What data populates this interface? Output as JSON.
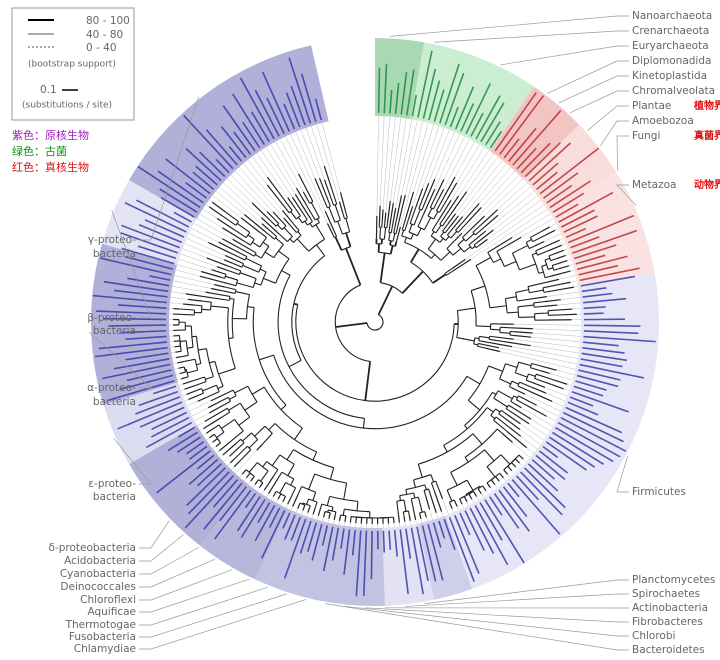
{
  "legend": {
    "lines": [
      "80 - 100",
      "40 - 80",
      "0 - 40"
    ],
    "note": "(bootstrap support)",
    "scale": "0.1",
    "scale_note": "(substitutions / site)"
  },
  "annotations": [
    {
      "text": "紫色：原核生物",
      "color": "#a020c0"
    },
    {
      "text": "绿色：古菌",
      "color": "#109010"
    },
    {
      "text": "红色：真核生物",
      "color": "#e01010"
    }
  ],
  "right_labels": [
    {
      "label": "Nanoarchaeota"
    },
    {
      "label": "Crenarchaeota"
    },
    {
      "label": "Euryarchaeota"
    },
    {
      "label": "Diplomonadida"
    },
    {
      "label": "Kinetoplastida"
    },
    {
      "label": "Chromalveolata"
    },
    {
      "label": "Plantae",
      "note": "植物界"
    },
    {
      "label": "Amoebozoa"
    },
    {
      "label": "Fungi",
      "note": "真菌界"
    },
    {
      "label": "Metazoa",
      "note": "动物界"
    },
    {
      "label": "Firmicutes"
    },
    {
      "label": "Planctomycetes"
    },
    {
      "label": "Spirochaetes"
    },
    {
      "label": "Actinobacteria"
    },
    {
      "label": "Fibrobacteres"
    },
    {
      "label": "Chlorobi"
    },
    {
      "label": "Bacteroidetes"
    }
  ],
  "left_labels": [
    {
      "label": "γ-proteo-\nbacteria"
    },
    {
      "label": "β-proteo-\nbacteria"
    },
    {
      "label": "α-proteo-\nbacteria"
    },
    {
      "label": "ε-proteo-\nbacteria"
    },
    {
      "label": "δ-proteobacteria"
    },
    {
      "label": "Acidobacteria"
    },
    {
      "label": "Cyanobacteria"
    },
    {
      "label": "Deinococcales"
    },
    {
      "label": "Chloroflexi"
    },
    {
      "label": "Aquificae"
    },
    {
      "label": "Thermotogae"
    },
    {
      "label": "Fusobacteria"
    },
    {
      "label": "Chlamydiae"
    }
  ]
}
